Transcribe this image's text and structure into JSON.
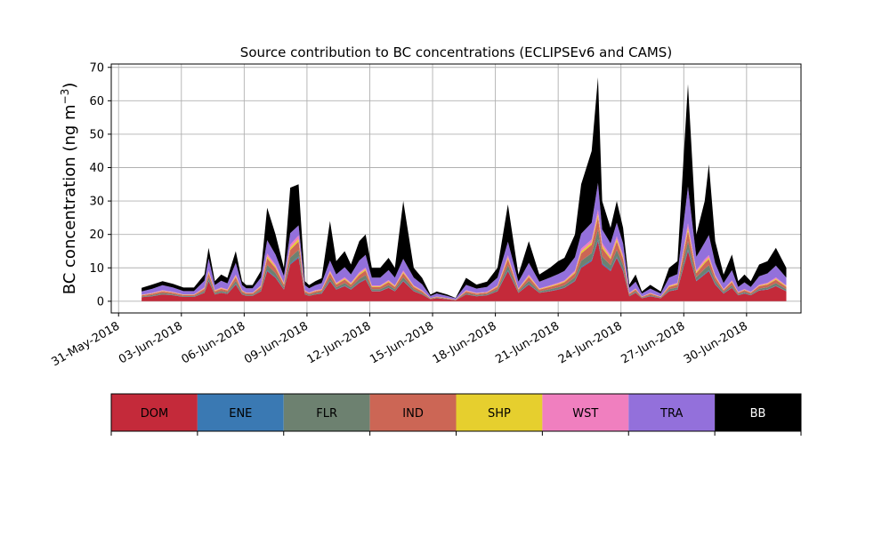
{
  "chart_data": {
    "type": "area",
    "stacked": true,
    "title": "Source contribution to BC concentrations (ECLIPSEv6 and CAMS)",
    "ylabel_main": "BC concentration (ng m",
    "ylabel_sup": "−3",
    "ylabel_close": ")",
    "xlabel": "",
    "ylim": [
      -3.5,
      71
    ],
    "xlim_days": [
      -0.35,
      32.6
    ],
    "grid": true,
    "yticks": [
      0,
      10,
      20,
      30,
      40,
      50,
      60,
      70
    ],
    "ytick_labels": [
      "0",
      "10",
      "20",
      "30",
      "40",
      "50",
      "60",
      "70"
    ],
    "xticks_days": [
      0,
      3,
      6,
      9,
      12,
      15,
      18,
      21,
      24,
      27,
      30
    ],
    "xtick_labels": [
      "31-May-2018",
      "03-Jun-2018",
      "06-Jun-2018",
      "09-Jun-2018",
      "12-Jun-2018",
      "15-Jun-2018",
      "18-Jun-2018",
      "21-Jun-2018",
      "24-Jun-2018",
      "27-Jun-2018",
      "30-Jun-2018"
    ],
    "x_days": [
      1.1,
      1.6,
      2.1,
      2.6,
      3.1,
      3.6,
      4.1,
      4.3,
      4.6,
      4.9,
      5.2,
      5.6,
      5.9,
      6.1,
      6.4,
      6.8,
      7.1,
      7.5,
      7.9,
      8.2,
      8.6,
      8.9,
      9.1,
      9.4,
      9.7,
      10.1,
      10.4,
      10.8,
      11.1,
      11.5,
      11.8,
      12.1,
      12.5,
      12.9,
      13.2,
      13.6,
      14.1,
      14.5,
      14.9,
      15.2,
      15.7,
      16.1,
      16.6,
      17.1,
      17.6,
      18.1,
      18.6,
      19.1,
      19.6,
      20.1,
      20.6,
      21.0,
      21.3,
      21.8,
      22.1,
      22.6,
      22.9,
      23.1,
      23.5,
      23.8,
      24.1,
      24.4,
      24.7,
      25.0,
      25.4,
      25.9,
      26.3,
      26.7,
      27.2,
      27.6,
      28.0,
      28.2,
      28.5,
      28.9,
      29.3,
      29.6,
      29.9,
      30.2,
      30.6,
      31.0,
      31.4,
      31.9
    ],
    "total": [
      4,
      5,
      6,
      5,
      4,
      4,
      8,
      16,
      6,
      8,
      7,
      15,
      6,
      5,
      5,
      9,
      28,
      20,
      10,
      34,
      35,
      6,
      5,
      6,
      7,
      24,
      12,
      15,
      11,
      18,
      20,
      10,
      10,
      13,
      10,
      30,
      10,
      7,
      2,
      3,
      2,
      1,
      7,
      5,
      6,
      10,
      30,
      8,
      18,
      8,
      10,
      12,
      13,
      20,
      35,
      45,
      67,
      30,
      22,
      30,
      22,
      5,
      8,
      3,
      5,
      3,
      10,
      12,
      65,
      20,
      30,
      40,
      18,
      8,
      14,
      6,
      8,
      6,
      11,
      12,
      16,
      10
    ],
    "series": [
      {
        "name": "DOM",
        "color": "#c42a3a",
        "values": [
          1.2,
          1.5,
          2,
          1.8,
          1.3,
          1.3,
          2.5,
          6,
          2,
          2.5,
          2.2,
          5,
          2,
          1.6,
          1.6,
          3,
          9,
          7,
          3.5,
          11,
          13,
          2,
          1.6,
          2,
          2.3,
          6,
          3.5,
          4.5,
          3.5,
          5.5,
          6.5,
          3,
          3,
          4,
          3,
          6,
          3,
          2,
          0.6,
          0.9,
          0.6,
          0.3,
          2,
          1.5,
          1.8,
          3,
          9,
          2.5,
          5,
          2.5,
          3,
          3.5,
          4,
          6,
          10,
          12,
          18,
          11,
          9,
          13,
          9,
          1.5,
          2.5,
          0.9,
          1.5,
          0.9,
          3,
          3.5,
          15,
          6,
          8,
          9,
          5,
          2.3,
          4,
          1.8,
          2.3,
          1.8,
          3.2,
          3.5,
          4.5,
          3
        ]
      },
      {
        "name": "ENE",
        "color": "#3a79b3",
        "values": [
          0.05,
          0.05,
          0.05,
          0.05,
          0.05,
          0.05,
          0.1,
          0.2,
          0.1,
          0.1,
          0.1,
          0.2,
          0.1,
          0.05,
          0.05,
          0.1,
          0.3,
          0.2,
          0.1,
          0.3,
          0.4,
          0.05,
          0.05,
          0.05,
          0.1,
          0.2,
          0.1,
          0.2,
          0.1,
          0.2,
          0.2,
          0.1,
          0.1,
          0.1,
          0.1,
          0.2,
          0.1,
          0.05,
          0.02,
          0.03,
          0.02,
          0.01,
          0.05,
          0.05,
          0.05,
          0.1,
          0.3,
          0.1,
          0.2,
          0.1,
          0.1,
          0.1,
          0.1,
          0.2,
          0.3,
          0.4,
          0.6,
          0.4,
          0.3,
          0.4,
          0.3,
          0.05,
          0.1,
          0.03,
          0.05,
          0.03,
          0.1,
          0.1,
          0.5,
          0.2,
          0.3,
          0.3,
          0.2,
          0.1,
          0.1,
          0.05,
          0.1,
          0.05,
          0.1,
          0.1,
          0.15,
          0.1
        ]
      },
      {
        "name": "FLR",
        "color": "#6d8170",
        "values": [
          0.2,
          0.3,
          0.4,
          0.3,
          0.2,
          0.2,
          0.5,
          1,
          0.4,
          0.5,
          0.4,
          0.9,
          0.4,
          0.3,
          0.3,
          0.5,
          1.6,
          1.2,
          0.6,
          1.8,
          2,
          0.4,
          0.3,
          0.4,
          0.4,
          1,
          0.6,
          0.8,
          0.6,
          1,
          1.1,
          0.5,
          0.5,
          0.7,
          0.5,
          1,
          0.5,
          0.4,
          0.1,
          0.15,
          0.1,
          0.05,
          0.4,
          0.3,
          0.3,
          0.5,
          1.5,
          0.4,
          0.9,
          0.4,
          0.5,
          0.6,
          0.7,
          1,
          1.8,
          2,
          3,
          2,
          1.5,
          2,
          1.5,
          0.3,
          0.4,
          0.15,
          0.3,
          0.15,
          0.5,
          0.6,
          2.5,
          1,
          1.4,
          1.5,
          0.9,
          0.4,
          0.7,
          0.3,
          0.4,
          0.3,
          0.5,
          0.6,
          0.8,
          0.5
        ]
      },
      {
        "name": "IND",
        "color": "#cc6655",
        "values": [
          0.3,
          0.4,
          0.5,
          0.4,
          0.3,
          0.3,
          0.6,
          1.2,
          0.5,
          0.6,
          0.5,
          1.1,
          0.5,
          0.4,
          0.4,
          0.7,
          2,
          1.5,
          0.8,
          2.2,
          2.5,
          0.5,
          0.4,
          0.5,
          0.5,
          1.2,
          0.8,
          1,
          0.8,
          1.2,
          1.4,
          0.7,
          0.7,
          0.9,
          0.7,
          1.2,
          0.7,
          0.5,
          0.15,
          0.2,
          0.15,
          0.08,
          0.5,
          0.4,
          0.4,
          0.7,
          1.8,
          0.5,
          1.1,
          0.5,
          0.7,
          0.8,
          0.9,
          1.2,
          2.2,
          2.5,
          3.5,
          2.5,
          1.8,
          2.5,
          1.8,
          0.4,
          0.5,
          0.2,
          0.4,
          0.2,
          0.7,
          0.8,
          3,
          1.2,
          1.7,
          1.8,
          1.1,
          0.5,
          0.9,
          0.4,
          0.5,
          0.4,
          0.7,
          0.8,
          1,
          0.7
        ]
      },
      {
        "name": "SHP",
        "color": "#e6cf2e",
        "values": [
          0.1,
          0.1,
          0.15,
          0.1,
          0.1,
          0.1,
          0.2,
          0.4,
          0.15,
          0.2,
          0.15,
          0.35,
          0.15,
          0.1,
          0.1,
          0.2,
          0.6,
          0.45,
          0.25,
          0.7,
          0.8,
          0.15,
          0.1,
          0.15,
          0.15,
          0.35,
          0.25,
          0.3,
          0.25,
          0.35,
          0.4,
          0.2,
          0.2,
          0.3,
          0.2,
          0.35,
          0.2,
          0.15,
          0.05,
          0.06,
          0.05,
          0.03,
          0.15,
          0.1,
          0.1,
          0.2,
          0.5,
          0.15,
          0.35,
          0.15,
          0.2,
          0.25,
          0.25,
          0.35,
          0.6,
          0.7,
          1,
          0.7,
          0.5,
          0.7,
          0.5,
          0.1,
          0.15,
          0.06,
          0.1,
          0.06,
          0.2,
          0.25,
          1,
          0.4,
          0.5,
          0.5,
          0.3,
          0.15,
          0.25,
          0.1,
          0.15,
          0.1,
          0.2,
          0.25,
          0.3,
          0.2
        ]
      },
      {
        "name": "WST",
        "color": "#f07fbf",
        "values": [
          0.1,
          0.15,
          0.2,
          0.15,
          0.1,
          0.1,
          0.25,
          0.5,
          0.2,
          0.25,
          0.2,
          0.45,
          0.2,
          0.15,
          0.15,
          0.25,
          0.8,
          0.6,
          0.3,
          0.9,
          1,
          0.2,
          0.15,
          0.2,
          0.2,
          0.45,
          0.3,
          0.4,
          0.3,
          0.45,
          0.5,
          0.25,
          0.25,
          0.35,
          0.25,
          0.45,
          0.25,
          0.2,
          0.05,
          0.08,
          0.05,
          0.03,
          0.2,
          0.15,
          0.15,
          0.25,
          0.7,
          0.2,
          0.45,
          0.2,
          0.25,
          0.3,
          0.3,
          0.45,
          0.8,
          0.9,
          1.3,
          0.9,
          0.7,
          0.9,
          0.7,
          0.15,
          0.2,
          0.08,
          0.15,
          0.08,
          0.25,
          0.3,
          1.3,
          0.5,
          0.7,
          0.7,
          0.4,
          0.2,
          0.35,
          0.15,
          0.2,
          0.15,
          0.25,
          0.3,
          0.4,
          0.25
        ]
      },
      {
        "name": "TRA",
        "color": "#9370db",
        "values": [
          1,
          1.2,
          1.5,
          1.3,
          1,
          1,
          2,
          3.5,
          1.5,
          2,
          1.8,
          3.5,
          1.5,
          1.3,
          1.3,
          2.3,
          4,
          3,
          2,
          3.5,
          3,
          1.5,
          1.3,
          1.5,
          1.8,
          3,
          2.5,
          3,
          2.5,
          3.5,
          3.8,
          2.3,
          2.3,
          3,
          2.3,
          3.5,
          2.3,
          1.8,
          0.6,
          0.9,
          0.6,
          0.4,
          1.6,
          1.3,
          1.5,
          2.3,
          4,
          2,
          3.5,
          2,
          2.3,
          2.6,
          2.8,
          4,
          4.5,
          5,
          8,
          4,
          3.5,
          4,
          3.5,
          1.5,
          2,
          0.9,
          1.3,
          0.9,
          2.3,
          2.6,
          11,
          4,
          5,
          6,
          3.5,
          1.8,
          3,
          1.5,
          2,
          1.5,
          2.5,
          2.8,
          3.5,
          2.3
        ]
      },
      {
        "name": "BB",
        "color": "#000000",
        "values": [
          1.05,
          1.3,
          1.2,
          1.1,
          1.05,
          1.05,
          1.85,
          3.2,
          1.15,
          1.85,
          1.65,
          3.5,
          1.15,
          0.95,
          0.95,
          2.05,
          9.7,
          6.05,
          2.45,
          13.6,
          12.3,
          1.2,
          0.95,
          1.2,
          1.45,
          11.8,
          3.95,
          4.8,
          2.95,
          5.8,
          6.1,
          2.95,
          2.95,
          3.65,
          2.95,
          17.3,
          2.95,
          1.9,
          0.42,
          0.58,
          0.43,
          0.1,
          2.1,
          1.2,
          1.6,
          2.95,
          11.2,
          2.15,
          6.5,
          2.15,
          2.95,
          3.85,
          3.95,
          6.8,
          14.8,
          21.5,
          31.6,
          8.5,
          4.7,
          6.5,
          4.7,
          1,
          2.15,
          0.58,
          1.1,
          0.58,
          2.95,
          3.85,
          30.7,
          6.7,
          12.4,
          21.2,
          6.6,
          2.55,
          4.7,
          1.7,
          2.35,
          1.7,
          3.55,
          3.65,
          5.35,
          2.95
        ]
      }
    ],
    "legend": [
      "DOM",
      "ENE",
      "FLR",
      "IND",
      "SHP",
      "WST",
      "TRA",
      "BB"
    ],
    "legend_placement": "below"
  }
}
